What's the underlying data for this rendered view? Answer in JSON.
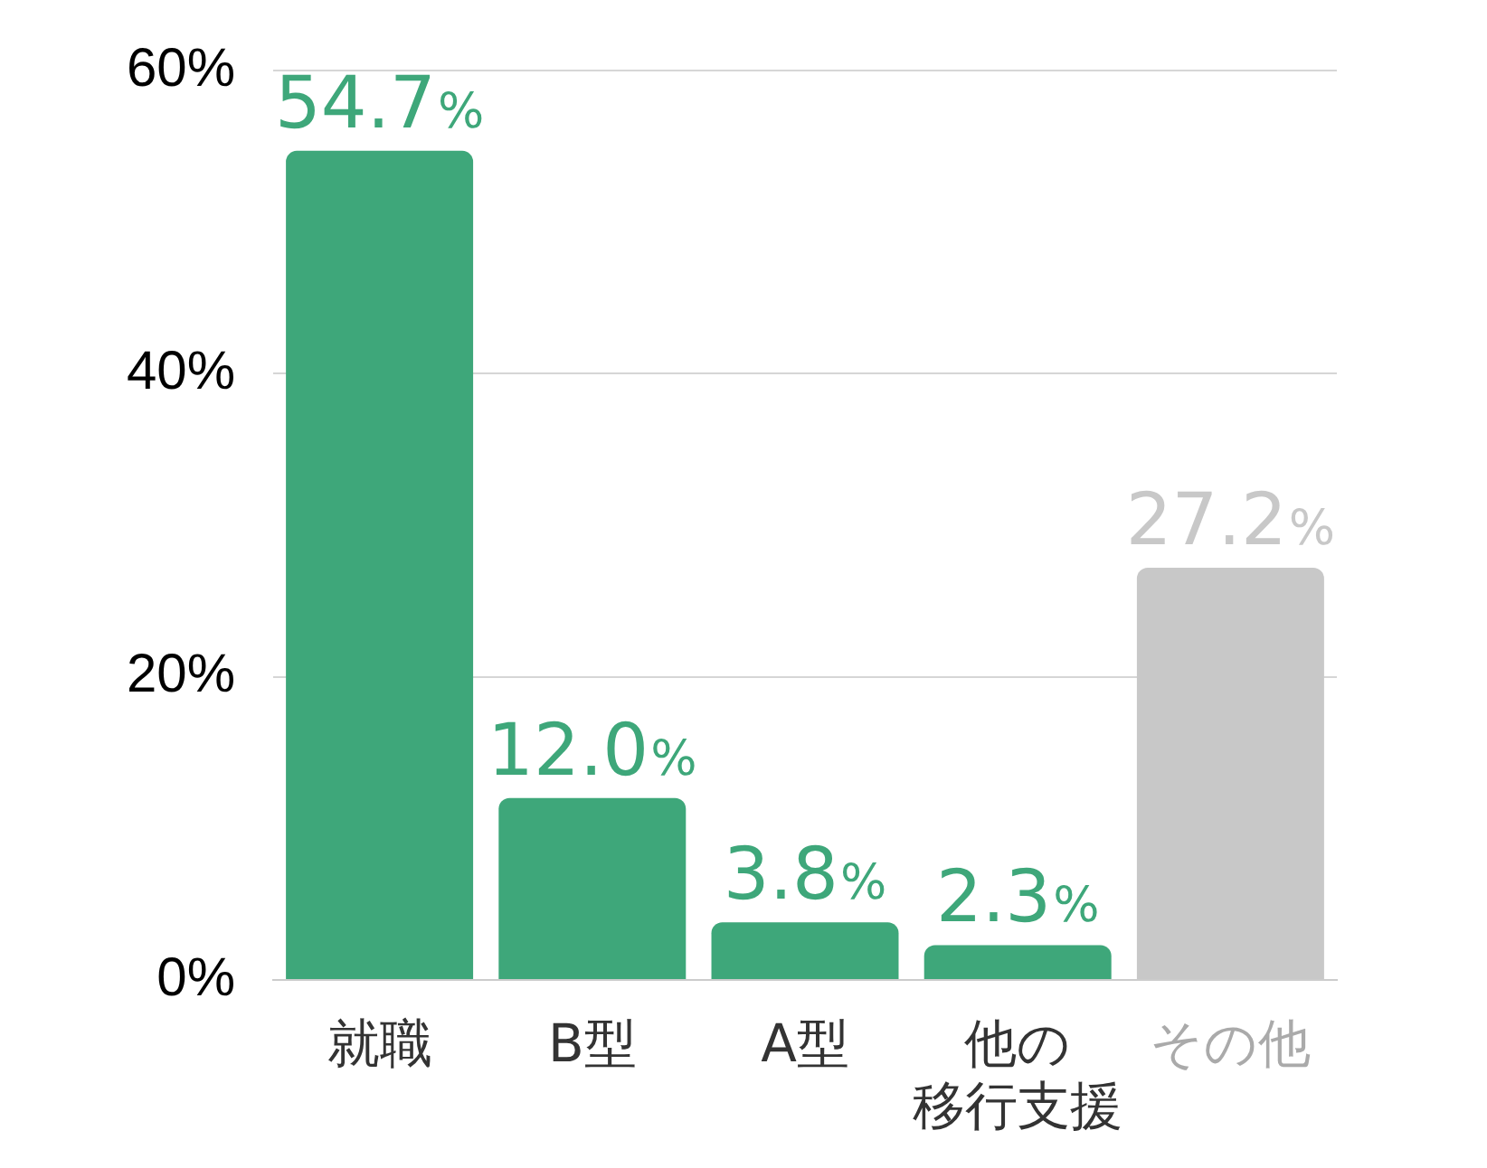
{
  "chart_data": {
    "type": "bar",
    "categories": [
      "就職",
      "B型",
      "A型",
      "他の移行支援",
      "その他"
    ],
    "values": [
      54.7,
      12.0,
      3.8,
      2.3,
      27.2
    ],
    "colors": [
      "#3ea77a",
      "#3ea77a",
      "#3ea77a",
      "#3ea77a",
      "#c8c8c8"
    ],
    "value_labels": [
      "54.7%",
      "12.0%",
      "3.8%",
      "2.3%",
      "27.2%"
    ],
    "ylim": [
      0,
      60
    ],
    "yticks": [
      {
        "value": 0,
        "label": "0%"
      },
      {
        "value": 20,
        "label": "20%"
      },
      {
        "value": 40,
        "label": "40%"
      },
      {
        "value": 60,
        "label": "60%"
      }
    ],
    "grid": "y"
  }
}
